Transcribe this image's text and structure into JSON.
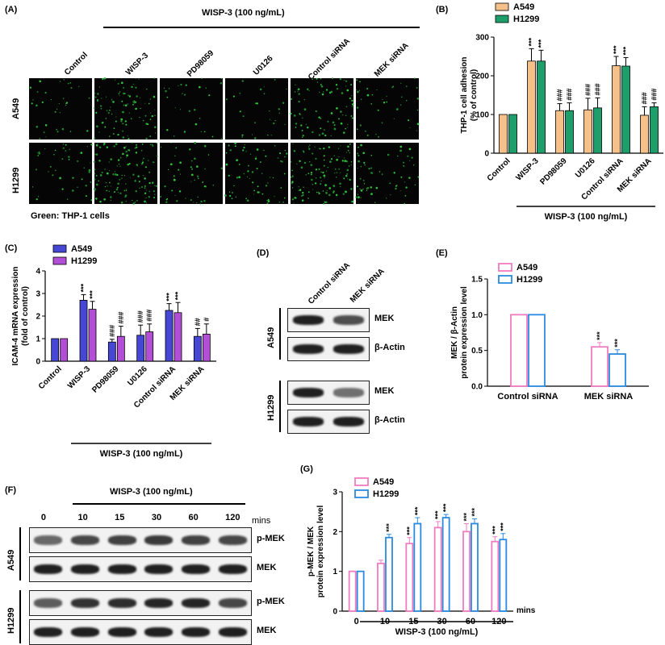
{
  "panels": {
    "A": "(A)",
    "B": "(B)",
    "C": "(C)",
    "D": "(D)",
    "E": "(E)",
    "F": "(F)",
    "G": "(G)"
  },
  "treatment": "WISP-3 (100 ng/mL)",
  "panel_a": {
    "columns": [
      "Control",
      "WISP-3",
      "PD98059",
      "U0126",
      "Control siRNA",
      "MEK siRNA"
    ],
    "rows": [
      "A549",
      "H1299"
    ],
    "caption": "Green: THP-1 cells",
    "cell_density": [
      [
        0.25,
        0.7,
        0.2,
        0.2,
        0.6,
        0.3
      ],
      [
        0.3,
        0.95,
        0.35,
        0.5,
        0.85,
        0.45
      ]
    ]
  },
  "panel_d": {
    "columns": [
      "Control siRNA",
      "MEK siRNA"
    ],
    "groups": [
      {
        "name": "A549",
        "bands": [
          "MEK",
          "β-Actin"
        ],
        "intensity": [
          [
            1.0,
            0.65
          ],
          [
            1.0,
            1.0
          ]
        ]
      },
      {
        "name": "H1299",
        "bands": [
          "MEK",
          "β-Actin"
        ],
        "intensity": [
          [
            1.0,
            0.4
          ],
          [
            1.0,
            1.0
          ]
        ]
      }
    ]
  },
  "panel_f": {
    "times": [
      "0",
      "10",
      "15",
      "30",
      "60",
      "120"
    ],
    "unit": "mins",
    "groups": [
      {
        "name": "A549",
        "bands": [
          "p-MEK",
          "MEK"
        ],
        "intensity": [
          [
            0.45,
            0.7,
            0.75,
            0.8,
            0.75,
            0.7
          ],
          [
            1,
            1,
            1,
            1,
            1,
            1
          ]
        ]
      },
      {
        "name": "H1299",
        "bands": [
          "p-MEK",
          "MEK"
        ],
        "intensity": [
          [
            0.55,
            0.85,
            0.9,
            0.95,
            0.95,
            0.7
          ],
          [
            1,
            1,
            1,
            1,
            1,
            1
          ]
        ]
      }
    ]
  },
  "chart_data": [
    {
      "id": "B",
      "type": "bar",
      "categories": [
        "Control",
        "WISP-3",
        "PD98059",
        "U0126",
        "Control siRNA",
        "MEK siRNA"
      ],
      "series": [
        {
          "name": "A549",
          "values": [
            100,
            238,
            110,
            112,
            226,
            98
          ],
          "errors": [
            0,
            32,
            18,
            30,
            24,
            22
          ],
          "marks": [
            "",
            "***",
            "###",
            "###",
            "***",
            "###"
          ],
          "color": "#F5C08A"
        },
        {
          "name": "H1299",
          "values": [
            100,
            238,
            110,
            117,
            225,
            120
          ],
          "errors": [
            0,
            28,
            20,
            26,
            22,
            10
          ],
          "marks": [
            "",
            "***",
            "###",
            "###",
            "***",
            "###"
          ],
          "color": "#1E9E6A"
        }
      ],
      "ylabel": "THP-1 cell adhesion (% of control)",
      "ylim": [
        0,
        300
      ],
      "yticks": [
        "0",
        "100",
        "200",
        "300"
      ],
      "bracket_label": "WISP-3 (100 ng/mL)"
    },
    {
      "id": "C",
      "type": "bar",
      "categories": [
        "Control",
        "WISP-3",
        "PD98059",
        "U0126",
        "Control siRNA",
        "MEK siRNA"
      ],
      "series": [
        {
          "name": "A549",
          "values": [
            1.0,
            2.7,
            0.85,
            1.15,
            2.25,
            1.1
          ],
          "errors": [
            0,
            0.25,
            0.12,
            0.45,
            0.3,
            0.35
          ],
          "marks": [
            "",
            "***",
            "###",
            "###",
            "***",
            "##"
          ],
          "color": "#4747D6"
        },
        {
          "name": "H1299",
          "values": [
            1.0,
            2.3,
            1.1,
            1.3,
            2.15,
            1.2
          ],
          "errors": [
            0,
            0.35,
            0.45,
            0.35,
            0.45,
            0.45
          ],
          "marks": [
            "",
            "***",
            "###",
            "###",
            "***",
            "#"
          ],
          "color": "#B34FD6"
        }
      ],
      "ylabel": "ICAM-4 mRNA expression (fold of control)",
      "ylim": [
        0,
        4
      ],
      "yticks": [
        "0",
        "1",
        "2",
        "3",
        "4"
      ],
      "bracket_label": "WISP-3 (100 ng/mL)"
    },
    {
      "id": "E",
      "type": "bar",
      "categories": [
        "Control siRNA",
        "MEK siRNA"
      ],
      "series": [
        {
          "name": "A549",
          "values": [
            1.0,
            0.55
          ],
          "errors": [
            0,
            0.06
          ],
          "marks": [
            "",
            "***"
          ],
          "color": "#F07CC0"
        },
        {
          "name": "H1299",
          "values": [
            1.0,
            0.45
          ],
          "errors": [
            0,
            0.06
          ],
          "marks": [
            "",
            "***"
          ],
          "color": "#2A8AE0"
        }
      ],
      "ylabel": "MEK / β-Actin protein expression level",
      "ylim": [
        0,
        1.5
      ],
      "yticks": [
        "0.0",
        "0.5",
        "1.0",
        "1.5"
      ]
    },
    {
      "id": "G",
      "type": "bar",
      "categories": [
        "0",
        "10",
        "15",
        "30",
        "60",
        "120"
      ],
      "series": [
        {
          "name": "A549",
          "values": [
            1.0,
            1.2,
            1.7,
            2.1,
            2.0,
            1.75
          ],
          "errors": [
            0,
            0.08,
            0.15,
            0.15,
            0.2,
            0.12
          ],
          "marks": [
            "",
            "",
            "***",
            "***",
            "***",
            "***"
          ],
          "color": "#F07CC0"
        },
        {
          "name": "H1299",
          "values": [
            1.0,
            1.85,
            2.2,
            2.35,
            2.2,
            1.8
          ],
          "errors": [
            0,
            0.08,
            0.15,
            0.08,
            0.12,
            0.15
          ],
          "marks": [
            "",
            "***",
            "***",
            "***",
            "***",
            "***"
          ],
          "color": "#2A8AE0"
        }
      ],
      "ylabel": "p-MEK / MEK protein expression level",
      "xunit": "mins",
      "ylim": [
        0,
        3
      ],
      "yticks": [
        "0",
        "1",
        "2",
        "3"
      ],
      "bracket_label": "WISP-3 (100 ng/mL)"
    }
  ]
}
